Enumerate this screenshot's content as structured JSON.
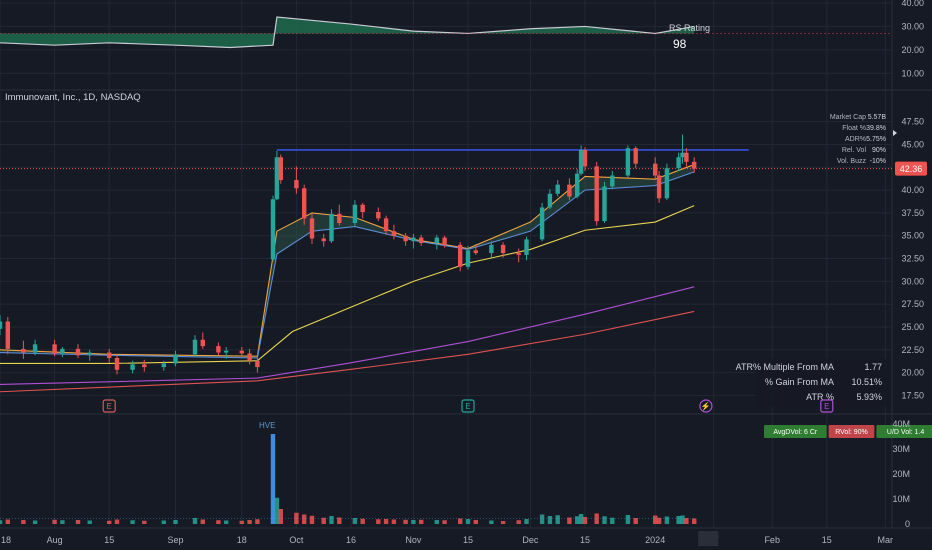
{
  "chart_data": [
    {
      "type": "area",
      "title": "RS Rating",
      "rs_value": "98",
      "y_ticks": [
        "40.00",
        "30.00",
        "20.00",
        "10.00"
      ],
      "ylim": [
        5,
        40
      ],
      "x": [
        "2023-07-18",
        "2023-08-01",
        "2023-08-15",
        "2023-09-01",
        "2023-09-15",
        "2023-09-26",
        "2023-09-27",
        "2023-10-16",
        "2023-11-01",
        "2023-11-15",
        "2023-12-01",
        "2023-12-15",
        "2024-01-02",
        "2024-01-12"
      ],
      "values": [
        23,
        22,
        23,
        22,
        21,
        22,
        34,
        31,
        28,
        27,
        29,
        30,
        27,
        30
      ],
      "baseline": 27
    },
    {
      "type": "candlestick",
      "title": "Immunovant, Inc., 1D, NASDAQ",
      "y_ticks": [
        "47.50",
        "45.00",
        "42.50",
        "40.00",
        "37.50",
        "35.00",
        "32.50",
        "30.00",
        "27.50",
        "25.00",
        "22.50",
        "20.00",
        "17.50"
      ],
      "ylim": [
        15.9,
        49.0
      ],
      "last_price": "42.36",
      "resistance_level": 44.4,
      "candles": [
        {
          "d": "2023-07-18",
          "o": 24.8,
          "h": 26.3,
          "l": 24.1,
          "c": 25.6
        },
        {
          "d": "2023-07-20",
          "o": 25.6,
          "h": 26.1,
          "l": 22.0,
          "c": 22.6
        },
        {
          "d": "2023-07-24",
          "o": 22.6,
          "h": 23.5,
          "l": 21.5,
          "c": 22.2
        },
        {
          "d": "2023-07-27",
          "o": 22.2,
          "h": 23.6,
          "l": 21.9,
          "c": 23.1
        },
        {
          "d": "2023-08-01",
          "o": 23.1,
          "h": 23.6,
          "l": 21.8,
          "c": 22.1
        },
        {
          "d": "2023-08-03",
          "o": 22.1,
          "h": 22.8,
          "l": 21.7,
          "c": 22.6
        },
        {
          "d": "2023-08-07",
          "o": 22.6,
          "h": 23.1,
          "l": 21.6,
          "c": 21.9
        },
        {
          "d": "2023-08-10",
          "o": 21.9,
          "h": 22.5,
          "l": 21.3,
          "c": 22.2
        },
        {
          "d": "2023-08-15",
          "o": 22.2,
          "h": 22.6,
          "l": 21.1,
          "c": 21.6
        },
        {
          "d": "2023-08-17",
          "o": 21.6,
          "h": 22.0,
          "l": 19.8,
          "c": 20.3
        },
        {
          "d": "2023-08-21",
          "o": 20.3,
          "h": 21.3,
          "l": 19.9,
          "c": 20.9
        },
        {
          "d": "2023-08-24",
          "o": 20.9,
          "h": 21.4,
          "l": 20.1,
          "c": 20.6
        },
        {
          "d": "2023-08-29",
          "o": 20.6,
          "h": 21.3,
          "l": 20.2,
          "c": 21.0
        },
        {
          "d": "2023-09-01",
          "o": 21.0,
          "h": 22.4,
          "l": 20.7,
          "c": 22.0
        },
        {
          "d": "2023-09-06",
          "o": 22.0,
          "h": 24.1,
          "l": 21.7,
          "c": 23.6
        },
        {
          "d": "2023-09-08",
          "o": 23.6,
          "h": 24.4,
          "l": 22.6,
          "c": 22.9
        },
        {
          "d": "2023-09-12",
          "o": 22.9,
          "h": 23.3,
          "l": 21.9,
          "c": 22.2
        },
        {
          "d": "2023-09-14",
          "o": 22.2,
          "h": 22.8,
          "l": 21.5,
          "c": 22.4
        },
        {
          "d": "2023-09-18",
          "o": 22.4,
          "h": 22.8,
          "l": 21.8,
          "c": 22.1
        },
        {
          "d": "2023-09-20",
          "o": 22.1,
          "h": 22.6,
          "l": 20.9,
          "c": 21.3
        },
        {
          "d": "2023-09-22",
          "o": 21.3,
          "h": 21.7,
          "l": 20.0,
          "c": 20.6
        },
        {
          "d": "2023-09-26",
          "o": 32.4,
          "h": 39.4,
          "l": 32.2,
          "c": 39.0
        },
        {
          "d": "2023-09-27",
          "o": 39.0,
          "h": 44.3,
          "l": 38.9,
          "c": 43.6
        },
        {
          "d": "2023-09-28",
          "o": 43.6,
          "h": 43.9,
          "l": 40.7,
          "c": 41.1
        },
        {
          "d": "2023-10-02",
          "o": 41.1,
          "h": 42.6,
          "l": 39.6,
          "c": 40.2
        },
        {
          "d": "2023-10-04",
          "o": 40.2,
          "h": 40.6,
          "l": 36.2,
          "c": 36.9
        },
        {
          "d": "2023-10-06",
          "o": 36.9,
          "h": 37.4,
          "l": 34.1,
          "c": 34.7
        },
        {
          "d": "2023-10-09",
          "o": 34.7,
          "h": 35.2,
          "l": 33.8,
          "c": 34.4
        },
        {
          "d": "2023-10-11",
          "o": 34.4,
          "h": 37.9,
          "l": 34.2,
          "c": 37.4
        },
        {
          "d": "2023-10-13",
          "o": 37.4,
          "h": 38.4,
          "l": 36.1,
          "c": 36.4
        },
        {
          "d": "2023-10-17",
          "o": 36.4,
          "h": 38.9,
          "l": 36.0,
          "c": 38.4
        },
        {
          "d": "2023-10-19",
          "o": 38.4,
          "h": 38.6,
          "l": 36.9,
          "c": 37.6
        },
        {
          "d": "2023-10-23",
          "o": 37.6,
          "h": 38.1,
          "l": 36.6,
          "c": 36.9
        },
        {
          "d": "2023-10-25",
          "o": 36.9,
          "h": 37.2,
          "l": 35.1,
          "c": 35.5
        },
        {
          "d": "2023-10-27",
          "o": 35.5,
          "h": 36.2,
          "l": 34.6,
          "c": 35.0
        },
        {
          "d": "2023-10-30",
          "o": 35.0,
          "h": 35.3,
          "l": 33.9,
          "c": 34.4
        },
        {
          "d": "2023-11-01",
          "o": 34.4,
          "h": 35.2,
          "l": 33.6,
          "c": 34.8
        },
        {
          "d": "2023-11-03",
          "o": 34.8,
          "h": 35.1,
          "l": 33.9,
          "c": 34.2
        },
        {
          "d": "2023-11-07",
          "o": 34.2,
          "h": 35.1,
          "l": 33.5,
          "c": 34.8
        },
        {
          "d": "2023-11-09",
          "o": 34.8,
          "h": 35.0,
          "l": 33.7,
          "c": 34.0
        },
        {
          "d": "2023-11-13",
          "o": 34.0,
          "h": 34.3,
          "l": 31.1,
          "c": 31.6
        },
        {
          "d": "2023-11-15",
          "o": 31.6,
          "h": 33.9,
          "l": 31.3,
          "c": 33.4
        },
        {
          "d": "2023-11-17",
          "o": 33.4,
          "h": 34.1,
          "l": 32.9,
          "c": 33.1
        },
        {
          "d": "2023-11-21",
          "o": 33.1,
          "h": 34.4,
          "l": 32.6,
          "c": 34.0
        },
        {
          "d": "2023-11-24",
          "o": 34.0,
          "h": 34.3,
          "l": 32.6,
          "c": 33.1
        },
        {
          "d": "2023-11-28",
          "o": 33.1,
          "h": 33.6,
          "l": 32.1,
          "c": 32.9
        },
        {
          "d": "2023-11-30",
          "o": 32.9,
          "h": 34.9,
          "l": 32.3,
          "c": 34.6
        },
        {
          "d": "2023-12-04",
          "o": 34.6,
          "h": 38.6,
          "l": 34.4,
          "c": 38.1
        },
        {
          "d": "2023-12-06",
          "o": 38.1,
          "h": 40.1,
          "l": 37.9,
          "c": 39.6
        },
        {
          "d": "2023-12-08",
          "o": 39.6,
          "h": 41.1,
          "l": 39.3,
          "c": 40.6
        },
        {
          "d": "2023-12-11",
          "o": 40.6,
          "h": 41.3,
          "l": 38.9,
          "c": 39.3
        },
        {
          "d": "2023-12-13",
          "o": 39.3,
          "h": 42.3,
          "l": 39.1,
          "c": 41.8
        },
        {
          "d": "2023-12-14",
          "o": 41.8,
          "h": 44.9,
          "l": 41.6,
          "c": 44.4
        },
        {
          "d": "2023-12-15",
          "o": 44.4,
          "h": 44.7,
          "l": 42.1,
          "c": 42.6
        },
        {
          "d": "2023-12-18",
          "o": 42.6,
          "h": 43.1,
          "l": 36.1,
          "c": 36.6
        },
        {
          "d": "2023-12-20",
          "o": 36.6,
          "h": 40.9,
          "l": 36.4,
          "c": 40.4
        },
        {
          "d": "2023-12-22",
          "o": 40.4,
          "h": 42.1,
          "l": 40.1,
          "c": 41.6
        },
        {
          "d": "2023-12-26",
          "o": 41.6,
          "h": 44.9,
          "l": 41.4,
          "c": 44.6
        },
        {
          "d": "2023-12-28",
          "o": 44.6,
          "h": 44.8,
          "l": 42.4,
          "c": 42.9
        },
        {
          "d": "2024-01-02",
          "o": 42.9,
          "h": 43.6,
          "l": 41.1,
          "c": 41.6
        },
        {
          "d": "2024-01-03",
          "o": 41.6,
          "h": 42.1,
          "l": 38.6,
          "c": 39.1
        },
        {
          "d": "2024-01-05",
          "o": 39.1,
          "h": 42.9,
          "l": 38.9,
          "c": 42.4
        },
        {
          "d": "2024-01-08",
          "o": 42.4,
          "h": 44.1,
          "l": 42.1,
          "c": 43.6
        },
        {
          "d": "2024-01-09",
          "o": 43.6,
          "h": 46.1,
          "l": 42.9,
          "c": 44.1
        },
        {
          "d": "2024-01-10",
          "o": 44.1,
          "h": 44.6,
          "l": 42.6,
          "c": 43.1
        },
        {
          "d": "2024-01-12",
          "o": 43.1,
          "h": 43.6,
          "l": 41.9,
          "c": 42.36
        }
      ],
      "series": [
        {
          "name": "EMA fast",
          "color": "#f0a341",
          "x": [
            "2023-07-18",
            "2023-08-15",
            "2023-09-22",
            "2023-09-27",
            "2023-10-06",
            "2023-10-17",
            "2023-11-01",
            "2023-11-15",
            "2023-12-01",
            "2023-12-15",
            "2024-01-02",
            "2024-01-12"
          ],
          "values": [
            22.5,
            22.0,
            21.8,
            35.5,
            37.5,
            37.0,
            34.6,
            33.6,
            36.5,
            41.5,
            41.2,
            42.8
          ]
        },
        {
          "name": "EMA slow",
          "color": "#5b8dd8",
          "x": [
            "2023-07-18",
            "2023-08-15",
            "2023-09-22",
            "2023-09-27",
            "2023-10-06",
            "2023-10-17",
            "2023-11-01",
            "2023-11-15",
            "2023-12-01",
            "2023-12-15",
            "2024-01-02",
            "2024-01-12"
          ],
          "values": [
            22.2,
            21.9,
            21.6,
            33.0,
            35.5,
            36.0,
            34.5,
            33.5,
            35.5,
            40.0,
            40.5,
            42.0
          ]
        },
        {
          "name": "MA 50",
          "color": "#e8d44d",
          "x": [
            "2023-07-18",
            "2023-08-15",
            "2023-09-22",
            "2023-10-01",
            "2023-10-15",
            "2023-11-01",
            "2023-11-15",
            "2023-12-01",
            "2023-12-15",
            "2024-01-02",
            "2024-01-12"
          ],
          "values": [
            21.0,
            21.0,
            21.3,
            24.5,
            27.0,
            30.0,
            32.0,
            33.5,
            35.6,
            36.5,
            38.3
          ]
        },
        {
          "name": "MA 150",
          "color": "#b04fd6",
          "x": [
            "2023-07-18",
            "2023-09-22",
            "2023-10-15",
            "2023-11-15",
            "2023-12-15",
            "2024-01-12"
          ],
          "values": [
            18.7,
            19.4,
            21.0,
            23.4,
            26.4,
            29.4
          ]
        },
        {
          "name": "MA 200",
          "color": "#e05252",
          "x": [
            "2023-07-18",
            "2023-09-22",
            "2023-10-15",
            "2023-11-15",
            "2023-12-15",
            "2024-01-12"
          ],
          "values": [
            17.9,
            19.1,
            20.3,
            22.0,
            24.2,
            26.7
          ]
        }
      ]
    },
    {
      "type": "bar",
      "title": "Volume",
      "y_ticks": [
        "40M",
        "30M",
        "20M",
        "10M",
        "0"
      ],
      "ylim": [
        0,
        40
      ],
      "unit": "M",
      "annotation": "HVE",
      "x": [
        "2023-07-18",
        "2023-07-20",
        "2023-07-24",
        "2023-07-27",
        "2023-08-01",
        "2023-08-03",
        "2023-08-07",
        "2023-08-10",
        "2023-08-15",
        "2023-08-17",
        "2023-08-21",
        "2023-08-24",
        "2023-08-29",
        "2023-09-01",
        "2023-09-06",
        "2023-09-08",
        "2023-09-12",
        "2023-09-14",
        "2023-09-18",
        "2023-09-20",
        "2023-09-22",
        "2023-09-26",
        "2023-09-27",
        "2023-09-28",
        "2023-10-02",
        "2023-10-04",
        "2023-10-06",
        "2023-10-09",
        "2023-10-11",
        "2023-10-13",
        "2023-10-17",
        "2023-10-19",
        "2023-10-23",
        "2023-10-25",
        "2023-10-27",
        "2023-10-30",
        "2023-11-01",
        "2023-11-03",
        "2023-11-07",
        "2023-11-09",
        "2023-11-13",
        "2023-11-15",
        "2023-11-17",
        "2023-11-21",
        "2023-11-24",
        "2023-11-28",
        "2023-11-30",
        "2023-12-04",
        "2023-12-06",
        "2023-12-08",
        "2023-12-11",
        "2023-12-13",
        "2023-12-14",
        "2023-12-15",
        "2023-12-18",
        "2023-12-20",
        "2023-12-22",
        "2023-12-26",
        "2023-12-28",
        "2024-01-02",
        "2024-01-03",
        "2024-01-05",
        "2024-01-08",
        "2024-01-09",
        "2024-01-10",
        "2024-01-12"
      ],
      "values": [
        1.5,
        1.8,
        1.6,
        1.4,
        1.7,
        1.5,
        1.6,
        1.4,
        1.3,
        1.8,
        1.5,
        1.3,
        1.4,
        1.6,
        2.4,
        1.8,
        1.5,
        1.4,
        1.3,
        1.6,
        1.9,
        36.0,
        10.5,
        6.0,
        4.5,
        3.8,
        3.3,
        2.5,
        3.2,
        2.6,
        2.4,
        2.1,
        1.9,
        2.0,
        1.8,
        1.7,
        1.6,
        1.7,
        1.6,
        1.5,
        2.2,
        2.0,
        1.6,
        1.4,
        1.2,
        1.5,
        2.0,
        3.8,
        3.2,
        3.5,
        2.6,
        3.1,
        4.0,
        2.8,
        4.2,
        3.1,
        2.5,
        3.6,
        2.4,
        3.4,
        2.5,
        3.0,
        3.2,
        3.4,
        2.4,
        2.2
      ],
      "up": [
        1,
        0,
        0,
        1,
        0,
        1,
        0,
        1,
        0,
        0,
        1,
        0,
        1,
        1,
        1,
        0,
        0,
        1,
        0,
        0,
        0,
        1,
        1,
        0,
        0,
        0,
        0,
        0,
        1,
        0,
        1,
        0,
        0,
        0,
        0,
        0,
        1,
        0,
        1,
        0,
        0,
        1,
        0,
        1,
        0,
        0,
        1,
        1,
        1,
        1,
        0,
        1,
        1,
        0,
        0,
        1,
        1,
        1,
        0,
        0,
        0,
        1,
        1,
        1,
        0,
        0
      ]
    }
  ],
  "stats_panel": {
    "rows": [
      {
        "label": "Market Cap",
        "value": "5.57B"
      },
      {
        "label": "Float %",
        "value": "39.8%"
      },
      {
        "label": "ADR%",
        "value": "5.75%"
      },
      {
        "label": "Rel. Vol",
        "value": "90%"
      },
      {
        "label": "Vol. Buzz",
        "value": "-10%"
      }
    ]
  },
  "atr_table": {
    "rows": [
      {
        "label": "ATR% Multiple From MA",
        "value": "1.77"
      },
      {
        "label": "% Gain From MA",
        "value": "10.51%"
      },
      {
        "label": "ATR %",
        "value": "5.93%"
      }
    ]
  },
  "volume_badges": [
    {
      "text": "AvgDVol: 6 Cr",
      "color": "#2e7d32"
    },
    {
      "text": "RVol: 90%",
      "color": "#c0454a"
    },
    {
      "text": "U/D Vol: 1.4",
      "color": "#2e7d32"
    }
  ],
  "x_axis": {
    "labels": [
      "18",
      "Aug",
      "15",
      "Sep",
      "18",
      "Oct",
      "16",
      "Nov",
      "15",
      "Dec",
      "15",
      "2024",
      "17",
      "Feb",
      "15",
      "Mar"
    ],
    "dates": [
      "2023-07-18",
      "2023-08-01",
      "2023-08-15",
      "2023-09-01",
      "2023-09-18",
      "2023-10-02",
      "2023-10-16",
      "2023-11-01",
      "2023-11-15",
      "2023-12-01",
      "2023-12-15",
      "2024-01-02",
      "2024-01-17",
      "2024-02-01",
      "2024-02-15",
      "2024-03-01"
    ]
  },
  "event_markers": [
    {
      "d": "2023-08-15",
      "label": "E",
      "color": "#d05c5c"
    },
    {
      "d": "2023-11-15",
      "label": "E",
      "color": "#26a69a"
    },
    {
      "d": "2024-01-15",
      "label": "⚡",
      "color": "#b04fd6"
    },
    {
      "d": "2024-02-15",
      "label": "E",
      "color": "#b04fd6"
    }
  ],
  "colors": {
    "up": "#26a69a",
    "down": "#ef5350",
    "resistance": "#3d5afe",
    "bg": "#161a25",
    "grid": "#232735"
  }
}
